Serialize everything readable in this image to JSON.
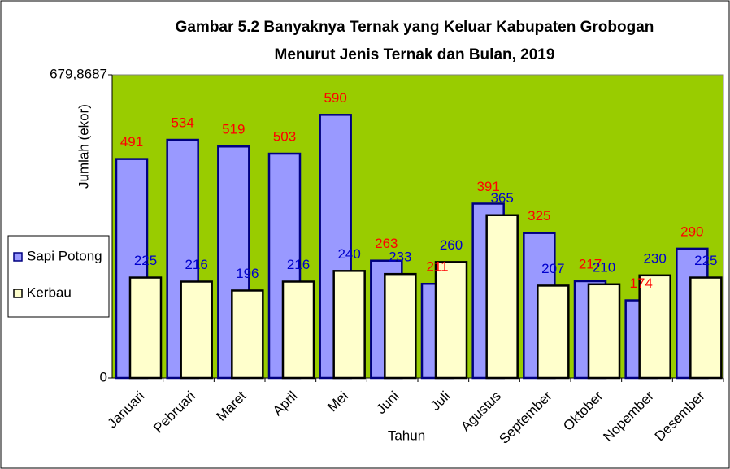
{
  "chart_data": {
    "type": "bar",
    "title": "Gambar 5.2 Banyaknya Ternak yang Keluar Kabupaten Grobogan",
    "subtitle": "Menurut Jenis Ternak dan Bulan, 2019",
    "x_label": "Tahun",
    "y_label": "Jumlah (ekor)",
    "categories": [
      "Januari",
      "Pebruari",
      "Maret",
      "April",
      "Mei",
      "Juni",
      "Juli",
      "Agustus",
      "September",
      "Oktober",
      "Nopember",
      "Desember"
    ],
    "series": [
      {
        "name": "Sapi Potong",
        "color": "#9999ff",
        "label_color": "#ff0000",
        "values": [
          491,
          534,
          519,
          503,
          590,
          263,
          211,
          391,
          325,
          217,
          174,
          290
        ]
      },
      {
        "name": "Kerbau",
        "color": "#ffffcc",
        "label_color": "#0000cc",
        "values": [
          225,
          216,
          196,
          216,
          240,
          233,
          260,
          365,
          207,
          210,
          230,
          225
        ]
      }
    ],
    "ylim": [
      0,
      679.8687
    ],
    "yticks": [
      0,
      {
        "value": 679.8687,
        "label": "679,8687"
      }
    ],
    "plot_background": "#99cc00",
    "legend": "left"
  }
}
